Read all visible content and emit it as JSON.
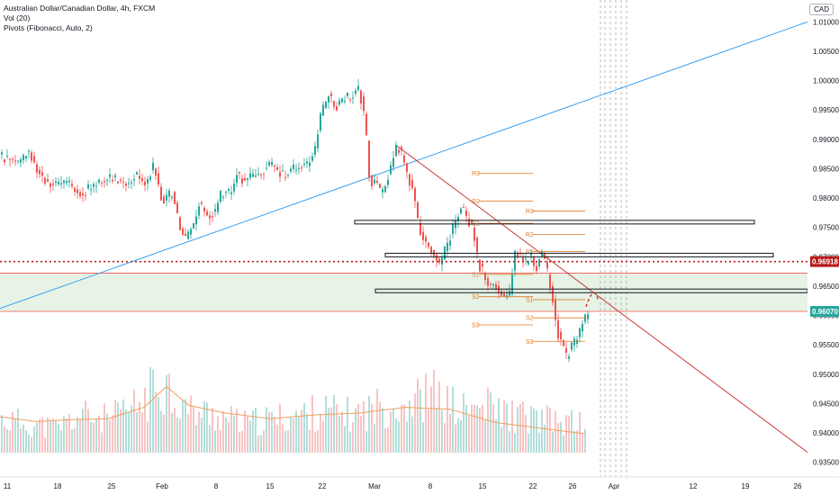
{
  "header": {
    "title": "Australian Dollar/Canadian Dollar, 4h, FXCM",
    "indicators": [
      "Vol (20)",
      "Pivots (Fibonacci, Auto, 2)"
    ]
  },
  "currency_label": "CAD",
  "colors": {
    "up": "#26a69a",
    "down": "#ef5350",
    "trend_blue": "#2196f3",
    "trend_red": "#c62828",
    "zone_fill": "#e6f3e6",
    "zone_border": "#ef5350",
    "pivot": "#e07b24",
    "price_red": "#b71c1c",
    "price_teal": "#26a69a",
    "dotted": "#9e9e9e"
  },
  "chart_data": {
    "type": "candlestick",
    "symbol": "AUDCAD",
    "timeframe": "4h",
    "ylim": [
      0.9325,
      1.0125
    ],
    "y_ticks": [
      1.01,
      1.005,
      1.0,
      0.995,
      0.99,
      0.985,
      0.98,
      0.975,
      0.97,
      0.965,
      0.96,
      0.955,
      0.95,
      0.945,
      0.94,
      0.935
    ],
    "x_ticks": [
      "11",
      "18",
      "25",
      "Feb",
      "8",
      "15",
      "22",
      "Mar",
      "8",
      "15",
      "22",
      "26",
      "Apr",
      "12",
      "19",
      "26"
    ],
    "price_labels": [
      {
        "label": "0.96918",
        "value": 0.96918,
        "color": "#b71c1c"
      },
      {
        "label": "0.96070",
        "value": 0.9607,
        "color": "#26a69a"
      }
    ],
    "pivot_labels": [
      "R3",
      "R2",
      "R1",
      "S1",
      "S2",
      "S3"
    ],
    "path": [
      [
        0,
        0.987
      ],
      [
        10,
        0.9865
      ],
      [
        20,
        0.9858
      ],
      [
        30,
        0.9885
      ],
      [
        40,
        0.985
      ],
      [
        50,
        0.983
      ],
      [
        60,
        0.982
      ],
      [
        75,
        0.9825
      ],
      [
        90,
        0.9808
      ],
      [
        100,
        0.9818
      ],
      [
        110,
        0.983
      ],
      [
        120,
        0.9832
      ],
      [
        130,
        0.983
      ],
      [
        140,
        0.9825
      ],
      [
        150,
        0.984
      ],
      [
        160,
        0.9826
      ],
      [
        170,
        0.9855
      ],
      [
        180,
        0.979
      ],
      [
        190,
        0.981
      ],
      [
        200,
        0.974
      ],
      [
        205,
        0.9728
      ],
      [
        210,
        0.9745
      ],
      [
        215,
        0.976
      ],
      [
        220,
        0.979
      ],
      [
        230,
        0.9772
      ],
      [
        238,
        0.9775
      ],
      [
        245,
        0.981
      ],
      [
        255,
        0.9808
      ],
      [
        262,
        0.9842
      ],
      [
        272,
        0.9828
      ],
      [
        282,
        0.984
      ],
      [
        292,
        0.985
      ],
      [
        302,
        0.9855
      ],
      [
        312,
        0.9838
      ],
      [
        322,
        0.9845
      ],
      [
        332,
        0.9855
      ],
      [
        340,
        0.9856
      ],
      [
        348,
        0.9878
      ],
      [
        356,
        0.9945
      ],
      [
        364,
        0.9975
      ],
      [
        372,
        0.9955
      ],
      [
        380,
        0.9968
      ],
      [
        390,
        0.9975
      ],
      [
        398,
        0.9988
      ],
      [
        405,
        0.992
      ],
      [
        410,
        0.982
      ],
      [
        416,
        0.9828
      ],
      [
        422,
        0.9805
      ],
      [
        432,
        0.9848
      ],
      [
        440,
        0.989
      ],
      [
        446,
        0.9868
      ],
      [
        452,
        0.984
      ],
      [
        458,
        0.981
      ],
      [
        464,
        0.9752
      ],
      [
        470,
        0.973
      ],
      [
        476,
        0.9718
      ],
      [
        482,
        0.97
      ],
      [
        488,
        0.968
      ],
      [
        494,
        0.9715
      ],
      [
        500,
        0.974
      ],
      [
        506,
        0.9768
      ],
      [
        512,
        0.9785
      ],
      [
        518,
        0.9765
      ],
      [
        524,
        0.9748
      ],
      [
        530,
        0.969
      ],
      [
        536,
        0.9672
      ],
      [
        542,
        0.965
      ],
      [
        548,
        0.9658
      ],
      [
        554,
        0.964
      ],
      [
        560,
        0.9628
      ],
      [
        566,
        0.9642
      ],
      [
        570,
        0.971
      ],
      [
        576,
        0.97
      ],
      [
        582,
        0.9688
      ],
      [
        588,
        0.9705
      ],
      [
        594,
        0.968
      ],
      [
        600,
        0.9705
      ],
      [
        606,
        0.968
      ],
      [
        612,
        0.964
      ],
      [
        618,
        0.9575
      ],
      [
        624,
        0.9545
      ],
      [
        628,
        0.953
      ],
      [
        634,
        0.9545
      ],
      [
        640,
        0.956
      ],
      [
        646,
        0.9585
      ],
      [
        652,
        0.96
      ]
    ],
    "volume_profile": [
      [
        0,
        0.4
      ],
      [
        30,
        0.35
      ],
      [
        60,
        0.3
      ],
      [
        90,
        0.45
      ],
      [
        120,
        0.4
      ],
      [
        150,
        0.55
      ],
      [
        165,
        0.7
      ],
      [
        180,
        0.9
      ],
      [
        195,
        0.65
      ],
      [
        210,
        0.5
      ],
      [
        240,
        0.45
      ],
      [
        270,
        0.35
      ],
      [
        300,
        0.4
      ],
      [
        330,
        0.45
      ],
      [
        360,
        0.5
      ],
      [
        390,
        0.45
      ],
      [
        420,
        0.55
      ],
      [
        450,
        0.6
      ],
      [
        480,
        0.7
      ],
      [
        510,
        0.5
      ],
      [
        540,
        0.55
      ],
      [
        570,
        0.45
      ],
      [
        600,
        0.4
      ],
      [
        630,
        0.35
      ],
      [
        650,
        0.4
      ]
    ],
    "vol_ma": [
      [
        0,
        0.38
      ],
      [
        40,
        0.33
      ],
      [
        80,
        0.35
      ],
      [
        120,
        0.36
      ],
      [
        160,
        0.48
      ],
      [
        185,
        0.7
      ],
      [
        210,
        0.5
      ],
      [
        250,
        0.42
      ],
      [
        300,
        0.36
      ],
      [
        350,
        0.4
      ],
      [
        400,
        0.42
      ],
      [
        450,
        0.48
      ],
      [
        500,
        0.46
      ],
      [
        550,
        0.32
      ],
      [
        600,
        0.26
      ],
      [
        650,
        0.2
      ]
    ]
  }
}
